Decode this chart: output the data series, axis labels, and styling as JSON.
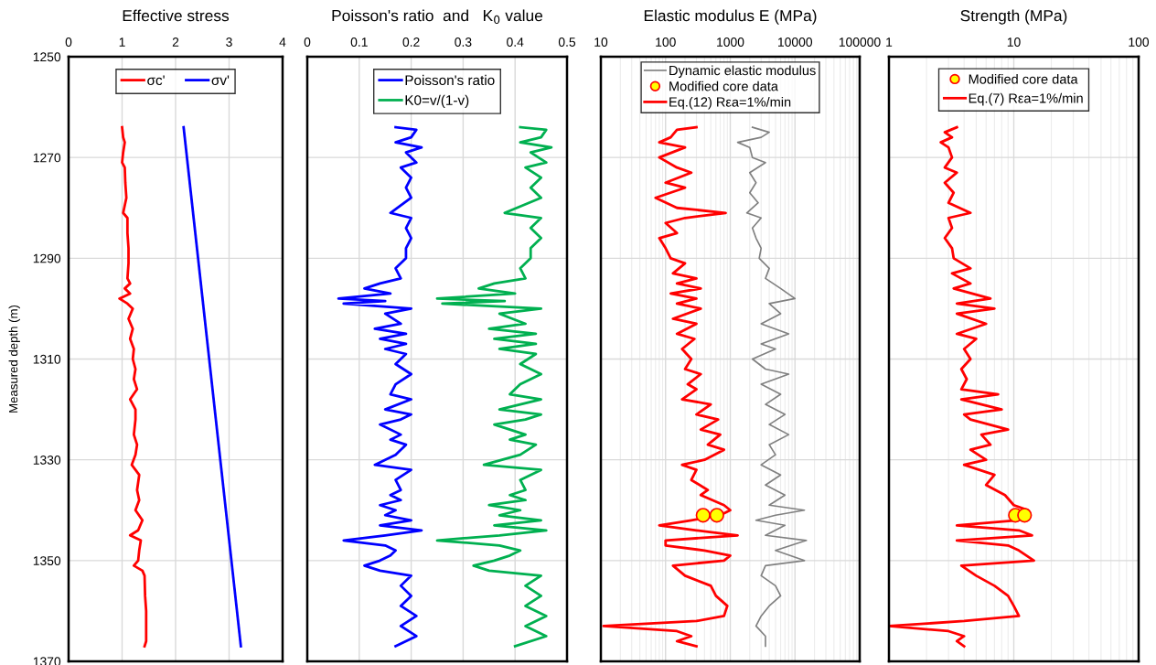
{
  "chart_data": [
    {
      "type": "line",
      "title": "Effective stress",
      "ylabel": "Measured depth (m)",
      "xlim": [
        0,
        4
      ],
      "xticks": [
        0,
        1,
        2,
        3,
        4
      ],
      "ylim": [
        1370,
        1250
      ],
      "yticks": [
        1250,
        1270,
        1290,
        1310,
        1330,
        1350,
        1370
      ],
      "grid": true,
      "legend": "top",
      "line_style": "solid",
      "marker": "none",
      "series": [
        {
          "name": "σc'",
          "color": "#ff0000",
          "x": [
            1.0,
            1.02,
            1.05,
            1.02,
            1.0,
            1.05,
            1.06,
            1.08,
            1.02,
            1.1,
            1.1,
            1.12,
            1.12,
            1.1,
            1.15,
            1.05,
            1.15,
            0.95,
            1.1,
            1.2,
            1.12,
            1.2,
            1.15,
            1.22,
            1.2,
            1.25,
            1.22,
            1.28,
            1.15,
            1.25,
            1.25,
            1.22,
            1.28,
            1.25,
            1.18,
            1.32,
            1.28,
            1.32,
            1.25,
            1.38,
            1.3,
            1.15,
            1.35,
            1.32,
            1.3,
            1.22,
            1.38,
            1.42,
            1.43,
            1.45,
            1.45,
            1.45,
            1.42
          ],
          "values": [
            1264,
            1266,
            1267,
            1269,
            1271,
            1272,
            1275,
            1278,
            1281,
            1282,
            1285,
            1288,
            1291,
            1294,
            1295,
            1296,
            1297,
            1298,
            1299,
            1300,
            1302,
            1304,
            1306,
            1308,
            1310,
            1312,
            1314,
            1316,
            1318,
            1320,
            1322,
            1325,
            1327,
            1329,
            1331,
            1333,
            1336,
            1338,
            1340,
            1342,
            1344,
            1345,
            1346,
            1348,
            1350,
            1351,
            1352,
            1353,
            1357,
            1360,
            1363,
            1366,
            1367
          ]
        },
        {
          "name": "σv'",
          "color": "#0000ff",
          "x": [
            2.15,
            3.22
          ],
          "values": [
            1264,
            1367
          ]
        }
      ]
    },
    {
      "type": "line",
      "title": "Poisson's ratio  and   K$_{0}$ value",
      "xlim": [
        0,
        0.5
      ],
      "xticks": [
        0,
        0.1,
        0.2,
        0.3,
        0.4,
        0.5
      ],
      "ylim": [
        1370,
        1250
      ],
      "yticks": [
        1250,
        1270,
        1290,
        1310,
        1330,
        1350,
        1370
      ],
      "tick_labels": "x",
      "grid": true,
      "legend": "top",
      "line_style": "solid",
      "marker": "none",
      "series": [
        {
          "name": "Poisson's ratio",
          "color": "#0000ff",
          "x": [
            0.17,
            0.21,
            0.2,
            0.17,
            0.22,
            0.19,
            0.21,
            0.18,
            0.2,
            0.19,
            0.2,
            0.16,
            0.2,
            0.19,
            0.2,
            0.19,
            0.19,
            0.17,
            0.18,
            0.14,
            0.11,
            0.16,
            0.06,
            0.15,
            0.07,
            0.2,
            0.15,
            0.18,
            0.13,
            0.19,
            0.14,
            0.19,
            0.15,
            0.19,
            0.17,
            0.2,
            0.17,
            0.16,
            0.2,
            0.15,
            0.2,
            0.18,
            0.14,
            0.18,
            0.16,
            0.19,
            0.17,
            0.13,
            0.2,
            0.17,
            0.18,
            0.16,
            0.18,
            0.14,
            0.17,
            0.15,
            0.2,
            0.14,
            0.22,
            0.15,
            0.07,
            0.15,
            0.17,
            0.16,
            0.14,
            0.11,
            0.14,
            0.2,
            0.18,
            0.2,
            0.18,
            0.21,
            0.18,
            0.21,
            0.17
          ],
          "values": [
            1264,
            1264.5,
            1266,
            1267,
            1268,
            1269,
            1271,
            1272,
            1274,
            1276,
            1278,
            1281,
            1282,
            1284,
            1286,
            1288,
            1290,
            1292,
            1294,
            1295,
            1296,
            1297,
            1298,
            1298.5,
            1299,
            1300,
            1301,
            1303,
            1304,
            1305,
            1306,
            1307,
            1308,
            1309,
            1311,
            1313,
            1315,
            1317,
            1318,
            1320,
            1321,
            1322,
            1323,
            1325,
            1326,
            1327,
            1329,
            1331,
            1332,
            1334,
            1336,
            1337,
            1338,
            1339,
            1340,
            1341,
            1342,
            1343,
            1344,
            1345,
            1346,
            1347,
            1348,
            1349,
            1350,
            1351,
            1352,
            1353,
            1355,
            1357,
            1359,
            1361,
            1363,
            1365,
            1367
          ]
        },
        {
          "name": "K0=v/(1-v)",
          "color": "#00b050",
          "x": [
            0.41,
            0.46,
            0.45,
            0.41,
            0.47,
            0.43,
            0.46,
            0.42,
            0.45,
            0.43,
            0.45,
            0.38,
            0.45,
            0.43,
            0.45,
            0.43,
            0.43,
            0.41,
            0.42,
            0.36,
            0.33,
            0.4,
            0.25,
            0.38,
            0.26,
            0.45,
            0.37,
            0.42,
            0.35,
            0.44,
            0.36,
            0.44,
            0.37,
            0.44,
            0.41,
            0.45,
            0.41,
            0.39,
            0.45,
            0.37,
            0.45,
            0.42,
            0.36,
            0.42,
            0.39,
            0.44,
            0.41,
            0.34,
            0.45,
            0.41,
            0.42,
            0.39,
            0.42,
            0.35,
            0.41,
            0.37,
            0.45,
            0.36,
            0.46,
            0.37,
            0.25,
            0.37,
            0.41,
            0.39,
            0.36,
            0.32,
            0.35,
            0.45,
            0.42,
            0.45,
            0.42,
            0.46,
            0.42,
            0.46,
            0.4
          ],
          "values": [
            1264,
            1264.5,
            1266,
            1267,
            1268,
            1269,
            1271,
            1272,
            1274,
            1276,
            1278,
            1281,
            1282,
            1284,
            1286,
            1288,
            1290,
            1292,
            1294,
            1295,
            1296,
            1297,
            1298,
            1298.5,
            1299,
            1300,
            1301,
            1303,
            1304,
            1305,
            1306,
            1307,
            1308,
            1309,
            1311,
            1313,
            1315,
            1317,
            1318,
            1320,
            1321,
            1322,
            1323,
            1325,
            1326,
            1327,
            1329,
            1331,
            1332,
            1334,
            1336,
            1337,
            1338,
            1339,
            1340,
            1341,
            1342,
            1343,
            1344,
            1345,
            1346,
            1347,
            1348,
            1349,
            1350,
            1351,
            1352,
            1353,
            1355,
            1357,
            1359,
            1361,
            1363,
            1365,
            1367
          ]
        }
      ]
    },
    {
      "type": "line",
      "title": "Elastic modulus E (MPa)",
      "log": "x",
      "xlim": [
        10,
        100000
      ],
      "xticks": [
        10,
        100,
        1000,
        10000,
        100000
      ],
      "ylim": [
        1370,
        1250
      ],
      "yticks": [
        1250,
        1270,
        1290,
        1310,
        1330,
        1350,
        1370
      ],
      "tick_labels": "x",
      "grid": true,
      "legend": "top",
      "line_style": "solid",
      "marker": "none",
      "series": [
        {
          "name": "Dynamic elastic modulus",
          "color": "#808080",
          "x": [
            2200,
            4000,
            3000,
            1300,
            2000,
            2200,
            3500,
            2000,
            2500,
            2000,
            2700,
            1800,
            3000,
            2200,
            2500,
            3000,
            2800,
            4000,
            3500,
            6000,
            10000,
            4000,
            6000,
            3000,
            8000,
            3000,
            5000,
            2200,
            3500,
            8000,
            3000,
            6000,
            3500,
            7000,
            4000,
            8000,
            4000,
            5000,
            3000,
            6000,
            3500,
            7000,
            4000,
            14000,
            5000,
            2500,
            7000,
            3500,
            15000,
            5000,
            14000,
            3500,
            3000,
            5000,
            6000,
            4000,
            3000,
            2500,
            3500,
            3500
          ],
          "values": [
            1264,
            1265,
            1266,
            1267,
            1268,
            1270,
            1271,
            1273,
            1275,
            1277,
            1279,
            1281,
            1282,
            1284,
            1286,
            1288,
            1290,
            1292,
            1294,
            1296,
            1298,
            1299,
            1301,
            1303,
            1305,
            1307,
            1308,
            1310,
            1312,
            1313,
            1315,
            1317,
            1319,
            1321,
            1323,
            1325,
            1327,
            1329,
            1331,
            1333,
            1335,
            1337,
            1339,
            1340,
            1341,
            1342,
            1343,
            1345,
            1346,
            1348,
            1350,
            1351,
            1353,
            1355,
            1357,
            1359,
            1361,
            1363,
            1365,
            1367
          ]
        },
        {
          "type": "scatter",
          "marker": "circle",
          "name": "Modified core data",
          "color": "#ffff00",
          "x": [
            380,
            620
          ],
          "values": [
            1341,
            1341
          ]
        },
        {
          "name": "Eq.(12) Rεa=1%/min",
          "color": "#ff0000",
          "x": [
            300,
            150,
            120,
            80,
            200,
            80,
            150,
            250,
            100,
            200,
            70,
            150,
            850,
            200,
            100,
            150,
            80,
            100,
            120,
            200,
            130,
            300,
            150,
            350,
            120,
            300,
            150,
            350,
            130,
            300,
            150,
            280,
            180,
            250,
            200,
            350,
            220,
            300,
            180,
            500,
            300,
            650,
            350,
            700,
            450,
            800,
            400,
            180,
            300,
            250,
            450,
            350,
            800,
            1000,
            700,
            250,
            80,
            300,
            1300,
            100,
            100,
            400,
            1000,
            800,
            130,
            200,
            500,
            600,
            900,
            800,
            300,
            11,
            150,
            250,
            150,
            300
          ],
          "values": [
            1264,
            1264.5,
            1266,
            1267,
            1268,
            1270,
            1272,
            1273,
            1275,
            1276,
            1278,
            1280,
            1281,
            1282,
            1283,
            1285,
            1286,
            1288,
            1290,
            1291,
            1293,
            1294,
            1295,
            1296,
            1297,
            1298,
            1299,
            1300,
            1302,
            1303,
            1305,
            1306,
            1308,
            1310,
            1312,
            1313,
            1315,
            1316,
            1318,
            1319,
            1321,
            1322,
            1324,
            1325,
            1327,
            1328,
            1330,
            1331,
            1332,
            1334,
            1336,
            1337,
            1339,
            1340,
            1341,
            1342,
            1343,
            1344,
            1345,
            1346,
            1347,
            1348,
            1349,
            1350,
            1351,
            1353,
            1355,
            1357,
            1359,
            1361,
            1362,
            1363,
            1364,
            1365,
            1366,
            1367
          ]
        }
      ]
    },
    {
      "type": "line",
      "title": "Strength (MPa)",
      "log": "x",
      "xlim": [
        1,
        100
      ],
      "xticks": [
        1,
        10,
        100
      ],
      "ylim": [
        1370,
        1250
      ],
      "yticks": [
        1250,
        1270,
        1290,
        1310,
        1330,
        1350,
        1370
      ],
      "tick_labels": "x",
      "grid": true,
      "legend": "top",
      "line_style": "solid",
      "marker": "none",
      "series": [
        {
          "type": "scatter",
          "marker": "circle",
          "name": "Modified core data",
          "color": "#ffff00",
          "x": [
            10.3,
            12.2
          ],
          "values": [
            1341,
            1341
          ]
        },
        {
          "name": "Eq.(7) Rεa=1%/min",
          "color": "#ff0000",
          "x": [
            3.5,
            2.8,
            3.2,
            2.6,
            3.0,
            3.2,
            2.8,
            3.5,
            2.8,
            3.3,
            3.0,
            4.5,
            3.0,
            3.2,
            2.8,
            3.2,
            3.3,
            4.5,
            3.2,
            4.5,
            3.3,
            6.5,
            3.5,
            7.0,
            3.5,
            6.0,
            3.5,
            5.0,
            4.0,
            4.5,
            3.8,
            4.2,
            3.8,
            7.5,
            3.8,
            8.0,
            4.0,
            4.5,
            9.0,
            5.5,
            6.5,
            4.5,
            6.0,
            4.0,
            7.0,
            6.0,
            8.5,
            10.0,
            13.0,
            11.0,
            10.5,
            3.5,
            11.0,
            14.0,
            3.5,
            9.0,
            11.0,
            14.5,
            3.8,
            5.0,
            7.0,
            9.0,
            10.0,
            11.0,
            4.0,
            1.0,
            3.0,
            4.0,
            3.5,
            4.0
          ],
          "values": [
            1264,
            1265,
            1266,
            1267,
            1268,
            1270,
            1272,
            1273,
            1275,
            1277,
            1279,
            1281,
            1282,
            1284,
            1286,
            1288,
            1290,
            1292,
            1293,
            1295,
            1296,
            1298,
            1299,
            1300,
            1301,
            1303,
            1305,
            1306,
            1308,
            1310,
            1312,
            1314,
            1316,
            1317,
            1318,
            1320,
            1321,
            1322,
            1324,
            1325,
            1327,
            1328,
            1330,
            1331,
            1333,
            1335,
            1337,
            1339,
            1340,
            1341,
            1342,
            1343,
            1344,
            1345,
            1346,
            1347,
            1348,
            1350,
            1351,
            1353,
            1355,
            1357,
            1359,
            1361,
            1362,
            1363,
            1364,
            1365,
            1366,
            1367
          ]
        }
      ]
    }
  ]
}
